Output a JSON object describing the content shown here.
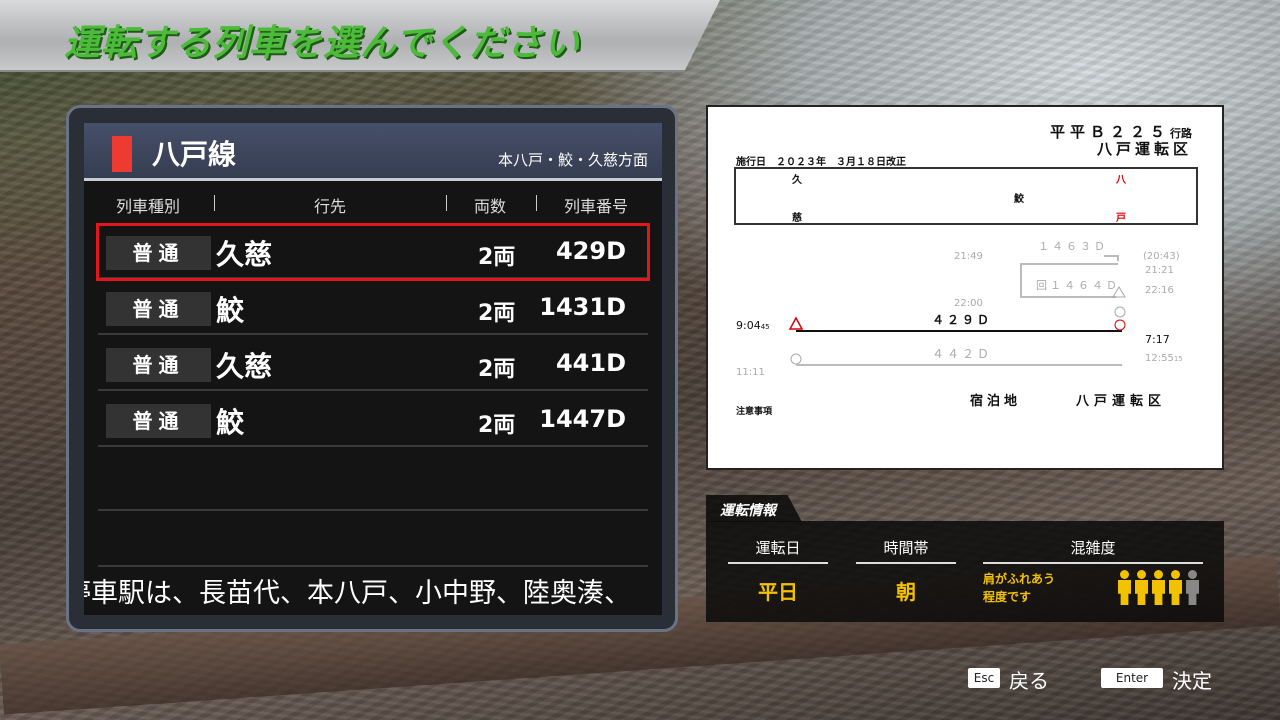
{
  "title": "運転する列車を選んでください",
  "line": {
    "name": "八戸線",
    "direction": "本八戸・鮫・久慈方面",
    "color": "#ee3b32"
  },
  "columns": [
    "列車種別",
    "行先",
    "両数",
    "列車番号"
  ],
  "trains": [
    {
      "kind": "普通",
      "dest": "久慈",
      "cars": "2両",
      "number": "429D",
      "selected": true
    },
    {
      "kind": "普通",
      "dest": "鮫",
      "cars": "2両",
      "number": "1431D",
      "selected": false
    },
    {
      "kind": "普通",
      "dest": "久慈",
      "cars": "2両",
      "number": "441D",
      "selected": false
    },
    {
      "kind": "普通",
      "dest": "鮫",
      "cars": "2両",
      "number": "1447D",
      "selected": false
    }
  ],
  "ticker": "停車駅は、長苗代、本八戸、小中野、陸奥湊、",
  "timetable": {
    "route_id": "平平Ｂ２２５",
    "route_suffix": "行路",
    "depot": "八戸運転区",
    "effective": "施行日　２０２３年　３月１８日改正",
    "stations": {
      "left_top": "久",
      "left_bottom": "慈",
      "middle": "鮫",
      "right_top": "八",
      "right_bottom": "戸"
    },
    "t1463": "１４６３Ｄ",
    "t1464": "回１４６４Ｄ",
    "t429": "４２９Ｄ",
    "t442": "４４２Ｄ",
    "times": {
      "a": "21:49",
      "b": "(20:43)",
      "c": "21:21",
      "d": "22:16",
      "e": "22:00",
      "f": "9:04",
      "f_sec": "45",
      "g": "7:17",
      "h": "11:11",
      "i": "12:55",
      "i_sec": "15"
    },
    "lodging_label": "宿泊地",
    "lodging": "八戸運転区",
    "notes": "注意事項"
  },
  "info": {
    "tab": "運転情報",
    "day_label": "運転日",
    "day": "平日",
    "time_label": "時間帯",
    "time": "朝",
    "crowd_label": "混雑度",
    "crowd_text1": "肩がふれあう",
    "crowd_text2": "程度です",
    "crowd_level": 4,
    "crowd_max": 5,
    "accent": "#f2c200"
  },
  "controls": {
    "back_key": "Esc",
    "back": "戻る",
    "ok_key": "Enter",
    "ok": "決定"
  }
}
